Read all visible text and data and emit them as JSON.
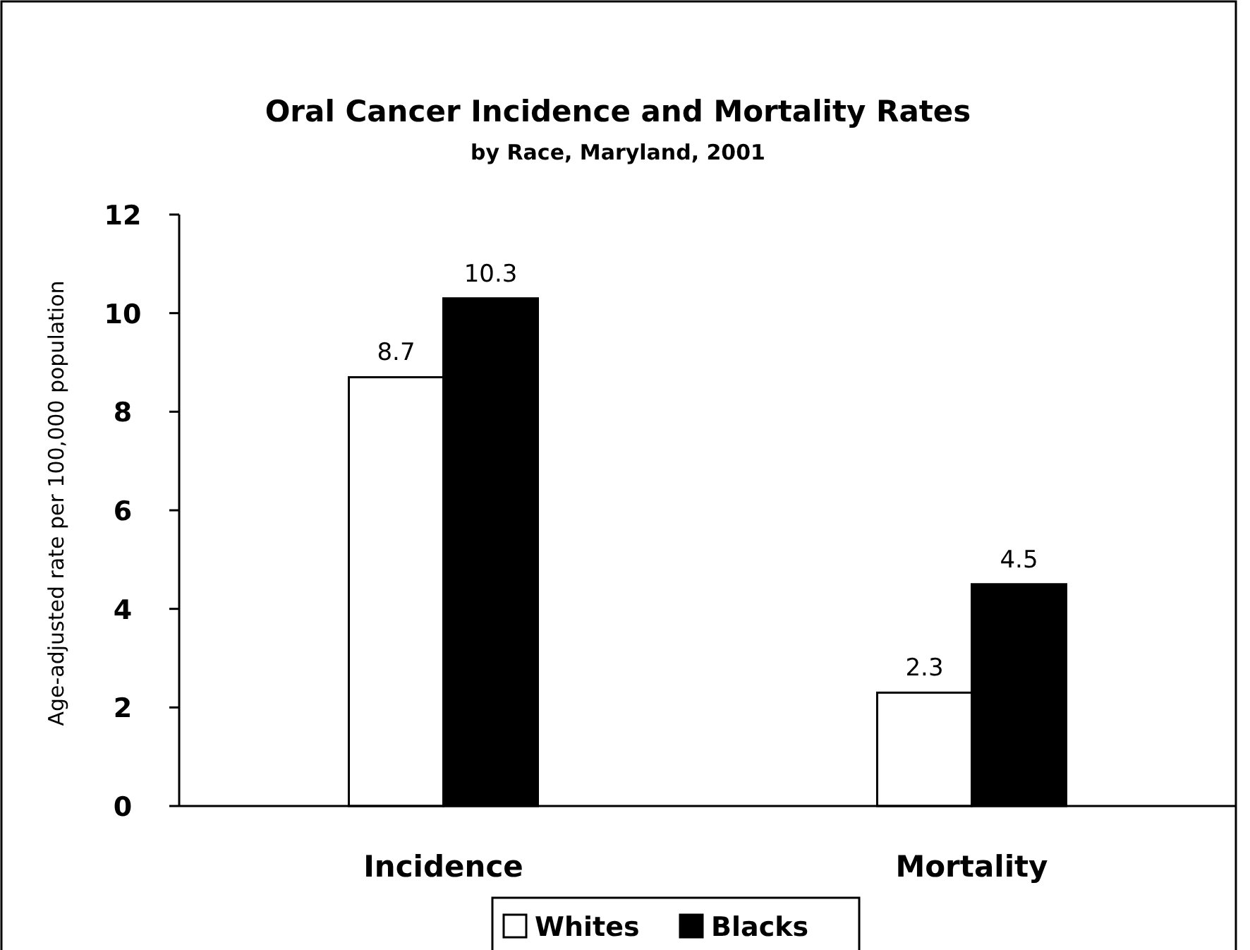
{
  "chart_data": {
    "type": "bar",
    "title": "Oral Cancer Incidence and Mortality Rates",
    "subtitle": "by Race, Maryland, 2001",
    "ylabel": "Age-adjusted rate per 100,000 population",
    "categories": [
      "Incidence",
      "Mortality"
    ],
    "series": [
      {
        "name": "Whites",
        "color": "#ffffff",
        "values": [
          8.7,
          2.3
        ]
      },
      {
        "name": "Blacks",
        "color": "#000000",
        "values": [
          10.3,
          4.5
        ]
      }
    ],
    "ylim": [
      0,
      12
    ],
    "yticks": [
      0,
      2,
      4,
      6,
      8,
      10,
      12
    ],
    "grid": false,
    "legend": "bottom",
    "data_labels": true
  }
}
